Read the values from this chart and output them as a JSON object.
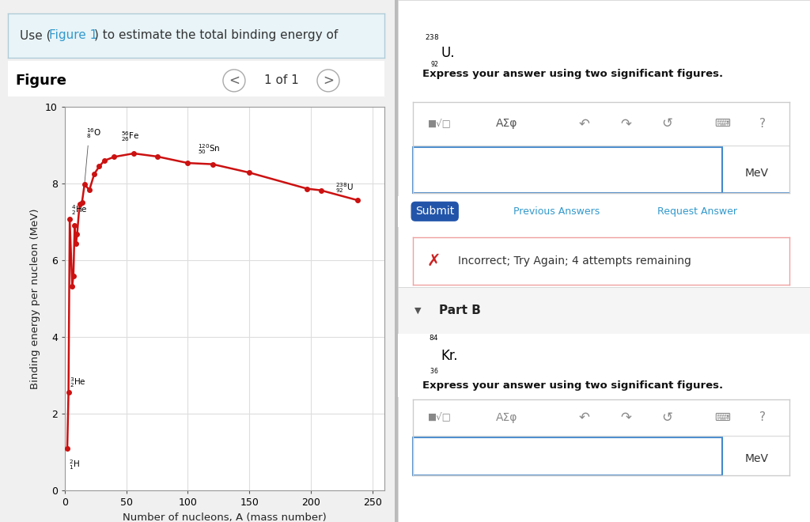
{
  "title": "",
  "xlabel": "Number of nucleons, A (mass number)",
  "ylabel": "Binding energy per nucleon (MeV)",
  "xlim": [
    0,
    260
  ],
  "ylim": [
    0,
    10
  ],
  "xticks": [
    0,
    50,
    100,
    150,
    200,
    250
  ],
  "yticks": [
    0,
    2,
    4,
    6,
    8,
    10
  ],
  "line_color": "#cc1111",
  "dot_color": "#cc1111",
  "curve_x": [
    2,
    3,
    4,
    6,
    7,
    8,
    9,
    10,
    12,
    14,
    16,
    20,
    24,
    28,
    32,
    40,
    56,
    75,
    100,
    120,
    150,
    197,
    208,
    238
  ],
  "curve_y": [
    1.11,
    2.57,
    7.07,
    5.33,
    5.6,
    6.92,
    6.43,
    6.68,
    7.47,
    7.52,
    7.98,
    7.84,
    8.26,
    8.45,
    8.6,
    8.7,
    8.79,
    8.71,
    8.54,
    8.51,
    8.29,
    7.87,
    7.83,
    7.57
  ],
  "panel_bg": "#e8f4f8",
  "figure_label": "Figure",
  "page_label": "1 of 1"
}
